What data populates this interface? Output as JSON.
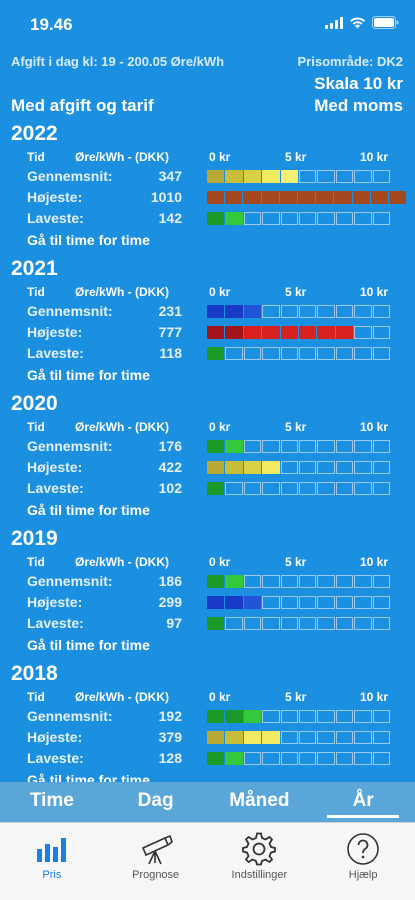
{
  "status": {
    "time": "19.46"
  },
  "header": {
    "fee_line": "Afgift i dag kl: 19 - 200.05 Øre/kWh",
    "price_area": "Prisområde: DK2",
    "scale": "Skala 10 kr",
    "incl_fee": "Med afgift og tarif",
    "vat": "Med moms"
  },
  "table_header": {
    "tid": "Tid",
    "unit": "Øre/kWh - (DKK)",
    "tick0": "0 kr",
    "tick5": "5 kr",
    "tick10": "10 kr"
  },
  "goto_label": "Gå til time for time",
  "years": [
    {
      "year": "2022",
      "rows": [
        {
          "label": "Gennemsnit:",
          "value": "347"
        },
        {
          "label": "Højeste:",
          "value": "1010"
        },
        {
          "label": "Laveste:",
          "value": "142"
        }
      ]
    },
    {
      "year": "2021",
      "rows": [
        {
          "label": "Gennemsnit:",
          "value": "231"
        },
        {
          "label": "Højeste:",
          "value": "777"
        },
        {
          "label": "Laveste:",
          "value": "118"
        }
      ]
    },
    {
      "year": "2020",
      "rows": [
        {
          "label": "Gennemsnit:",
          "value": "176"
        },
        {
          "label": "Højeste:",
          "value": "422"
        },
        {
          "label": "Laveste:",
          "value": "102"
        }
      ]
    },
    {
      "year": "2019",
      "rows": [
        {
          "label": "Gennemsnit:",
          "value": "186"
        },
        {
          "label": "Højeste:",
          "value": "299"
        },
        {
          "label": "Laveste:",
          "value": "97"
        }
      ]
    },
    {
      "year": "2018",
      "rows": [
        {
          "label": "Gennemsnit:",
          "value": "192"
        },
        {
          "label": "Højeste:",
          "value": "379"
        },
        {
          "label": "Laveste:",
          "value": "128"
        }
      ]
    }
  ],
  "bar_colors": {
    "yellow": [
      "#b8a835",
      "#c8bd3a",
      "#d9d145",
      "#f4ea62",
      "#f8f075"
    ],
    "brown": "#a5471f",
    "green_dark": "#1b9a2a",
    "green_light": "#34c93c",
    "blue_dark": "#1a3bc8",
    "blue": "#1f55d6",
    "red_dark": "#a3151a",
    "red": "#d8201e"
  },
  "periods": [
    "Time",
    "Dag",
    "Måned",
    "År"
  ],
  "active_period": "År",
  "tabs": [
    {
      "label": "Pris",
      "icon": "bar-chart-icon"
    },
    {
      "label": "Prognose",
      "icon": "telescope-icon"
    },
    {
      "label": "Indstillinger",
      "icon": "gear-icon"
    },
    {
      "label": "Hjælp",
      "icon": "help-icon"
    }
  ]
}
